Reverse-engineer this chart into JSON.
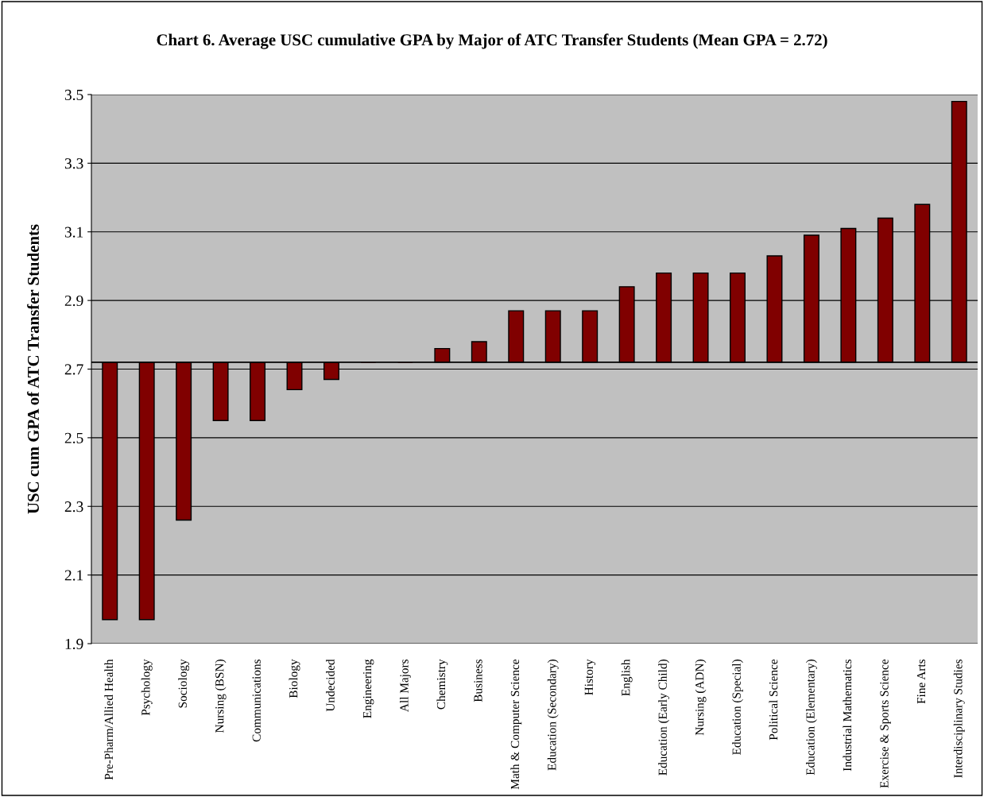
{
  "chart_data": {
    "type": "bar",
    "title": "Chart 6. Average USC cumulative GPA by Major of ATC Transfer Students (Mean GPA = 2.72)",
    "ylabel": "USC cum GPA of ATC Transfer Students",
    "categories": [
      "Pre-Pharm/Allied Health",
      "Psychology",
      "Sociology",
      "Nursing (BSN)",
      "Communications",
      "Biology",
      "Undecided",
      "Engineering",
      "All Majors",
      "Chemistry",
      "Business",
      "Math & Computer Science",
      "Education (Secondary)",
      "History",
      "English",
      "Education (Early Child)",
      "Nursing (ADN)",
      "Education (Special)",
      "Political Science",
      "Education (Elementary)",
      "Industrial Mathematics",
      "Exercise & Sports Science",
      "Fine Arts",
      "Interdisciplinary Studies"
    ],
    "base": [
      2.72,
      2.72,
      2.72,
      2.72,
      2.72,
      2.72,
      2.72,
      2.72,
      2.72,
      2.72,
      2.72,
      2.72,
      2.72,
      2.72,
      2.72,
      2.72,
      2.72,
      2.72,
      2.72,
      2.72,
      2.72,
      2.72,
      2.72,
      2.72
    ],
    "values": [
      -0.75,
      -0.75,
      -0.46,
      -0.17,
      -0.17,
      -0.08,
      -0.05,
      0,
      0,
      0.04,
      0.06,
      0.15,
      0.15,
      0.15,
      0.22,
      0.26,
      0.26,
      0.26,
      0.31,
      0.37,
      0.39,
      0.42,
      0.46,
      0.76
    ],
    "color": "#800000",
    "ylim": [
      1.9,
      3.5
    ],
    "yticks": [
      1.9,
      2.1,
      2.3,
      2.5,
      2.7,
      2.9,
      3.1,
      3.3,
      3.5
    ],
    "ref_lines": [
      {
        "axis": "y",
        "value": 2.72,
        "color": "#000000"
      }
    ],
    "grid": "y"
  }
}
